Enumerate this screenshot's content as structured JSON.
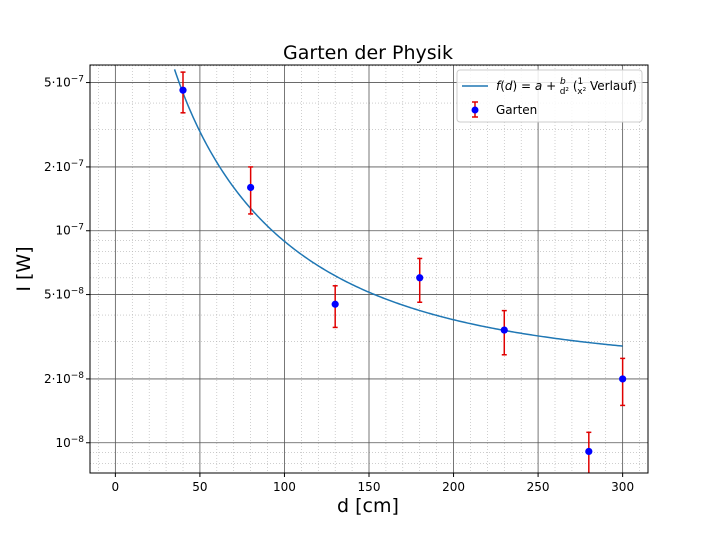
{
  "chart_data": {
    "type": "scatter",
    "title": "Garten der Physik",
    "xlabel": "d [cm]",
    "ylabel": "I [W]",
    "xlim": [
      -15,
      315
    ],
    "ylim": [
      7.2e-09,
      6.05e-07
    ],
    "y_scale": "log",
    "grid": true,
    "minor_grid": true,
    "legend_position": "top-right",
    "x_ticks": [
      0,
      50,
      100,
      150,
      200,
      250,
      300
    ],
    "y_ticks": [
      {
        "value": 5e-07,
        "mantissa": "5",
        "exponent": "−7"
      },
      {
        "value": 2e-07,
        "mantissa": "2",
        "exponent": "−7"
      },
      {
        "value": 1e-07,
        "mantissa": "",
        "exponent": "−7"
      },
      {
        "value": 5e-08,
        "mantissa": "5",
        "exponent": "−8"
      },
      {
        "value": 2e-08,
        "mantissa": "2",
        "exponent": "−8"
      },
      {
        "value": 1e-08,
        "mantissa": "",
        "exponent": "−8"
      }
    ],
    "series": [
      {
        "name": "Garten",
        "kind": "errorbar",
        "marker_color": "#0000ff",
        "error_color": "#e00000",
        "points": [
          {
            "x": 40,
            "y": 4.6e-07,
            "y_low": 3.6e-07,
            "y_high": 5.6e-07
          },
          {
            "x": 80,
            "y": 1.6e-07,
            "y_low": 1.2e-07,
            "y_high": 2e-07
          },
          {
            "x": 130,
            "y": 4.5e-08,
            "y_low": 3.5e-08,
            "y_high": 5.5e-08
          },
          {
            "x": 180,
            "y": 6e-08,
            "y_low": 4.6e-08,
            "y_high": 7.4e-08
          },
          {
            "x": 230,
            "y": 3.4e-08,
            "y_low": 2.6e-08,
            "y_high": 4.2e-08
          },
          {
            "x": 280,
            "y": 9.1e-09,
            "y_low": 7e-09,
            "y_high": 1.12e-08
          },
          {
            "x": 300,
            "y": 2e-08,
            "y_low": 1.5e-08,
            "y_high": 2.5e-08
          }
        ]
      },
      {
        "name": "f(d) = a + b/d² (1/x² Verlauf)",
        "kind": "line",
        "color": "#1f77b4",
        "formula": "a + b/d^2",
        "params": {
          "a": 2.1e-08,
          "b": 0.0006813
        },
        "x_range": [
          35,
          300
        ]
      }
    ]
  }
}
